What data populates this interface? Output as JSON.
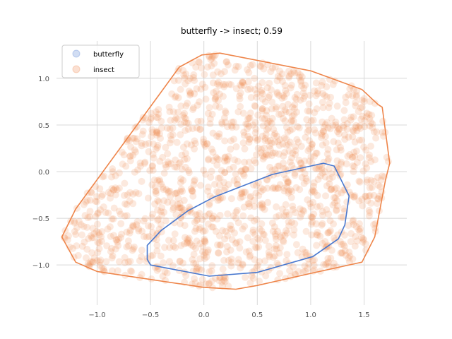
{
  "chart_data": {
    "type": "scatter",
    "title": "butterfly -> insect; 0.59",
    "xlabel": "",
    "ylabel": "",
    "xlim": [
      -1.38,
      1.9
    ],
    "ylim": [
      -1.43,
      1.4
    ],
    "xticks": [
      -1.0,
      -0.5,
      0.0,
      0.5,
      1.0,
      1.5
    ],
    "yticks": [
      -1.0,
      -0.5,
      0.0,
      0.5,
      1.0
    ],
    "xtick_labels": [
      "−1.0",
      "−0.5",
      "0.0",
      "0.5",
      "1.0",
      "1.5"
    ],
    "ytick_labels": [
      "−1.0",
      "−0.5",
      "0.0",
      "0.5",
      "1.0"
    ],
    "grid": true,
    "legend_position": "top-left",
    "series": [
      {
        "name": "butterfly",
        "color": "#4878cf",
        "hull": [
          [
            1.12,
            0.09
          ],
          [
            1.22,
            0.06
          ],
          [
            1.36,
            -0.26
          ],
          [
            1.32,
            -0.57
          ],
          [
            1.26,
            -0.72
          ],
          [
            1.02,
            -0.91
          ],
          [
            0.5,
            -1.08
          ],
          [
            0.05,
            -1.12
          ],
          [
            -0.5,
            -1.0
          ],
          [
            -0.53,
            -0.94
          ],
          [
            -0.53,
            -0.79
          ],
          [
            -0.4,
            -0.63
          ],
          [
            -0.15,
            -0.42
          ],
          [
            0.1,
            -0.27
          ],
          [
            0.64,
            -0.03
          ],
          [
            1.12,
            0.09
          ]
        ]
      },
      {
        "name": "insect",
        "color": "#ee854a",
        "hull": [
          [
            0.15,
            1.27
          ],
          [
            1.0,
            1.08
          ],
          [
            1.48,
            0.88
          ],
          [
            1.63,
            0.72
          ],
          [
            1.67,
            0.69
          ],
          [
            1.74,
            0.09
          ],
          [
            1.7,
            -0.09
          ],
          [
            1.6,
            -0.7
          ],
          [
            1.48,
            -0.97
          ],
          [
            1.0,
            -1.09
          ],
          [
            0.5,
            -1.22
          ],
          [
            0.3,
            -1.26
          ],
          [
            0.0,
            -1.24
          ],
          [
            -1.0,
            -1.07
          ],
          [
            -1.2,
            -0.97
          ],
          [
            -1.33,
            -0.7
          ],
          [
            -1.2,
            -0.4
          ],
          [
            -0.23,
            1.12
          ],
          [
            -0.02,
            1.25
          ],
          [
            0.15,
            1.27
          ]
        ]
      }
    ]
  }
}
